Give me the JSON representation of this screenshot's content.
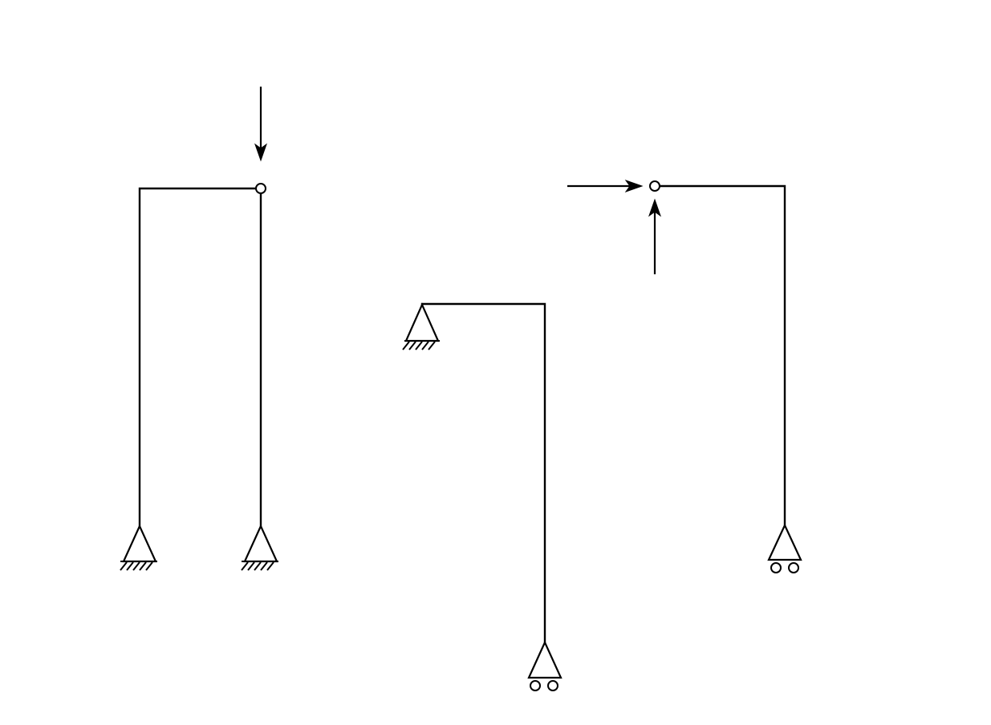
{
  "diagram": {
    "type": "structural-frames",
    "colors": {
      "line": "#000000",
      "background": "#ffffff"
    },
    "frames": [
      {
        "id": "left-frame",
        "supports": [
          "pin",
          "pin"
        ],
        "hinge": true,
        "loads": [
          "downward-point-load"
        ]
      },
      {
        "id": "middle-frame",
        "supports": [
          "pin",
          "roller"
        ],
        "hinge": false,
        "loads": []
      },
      {
        "id": "right-frame",
        "supports": [
          "roller"
        ],
        "hinge": true,
        "loads": [
          "horizontal-point-load",
          "upward-point-load"
        ]
      }
    ]
  }
}
